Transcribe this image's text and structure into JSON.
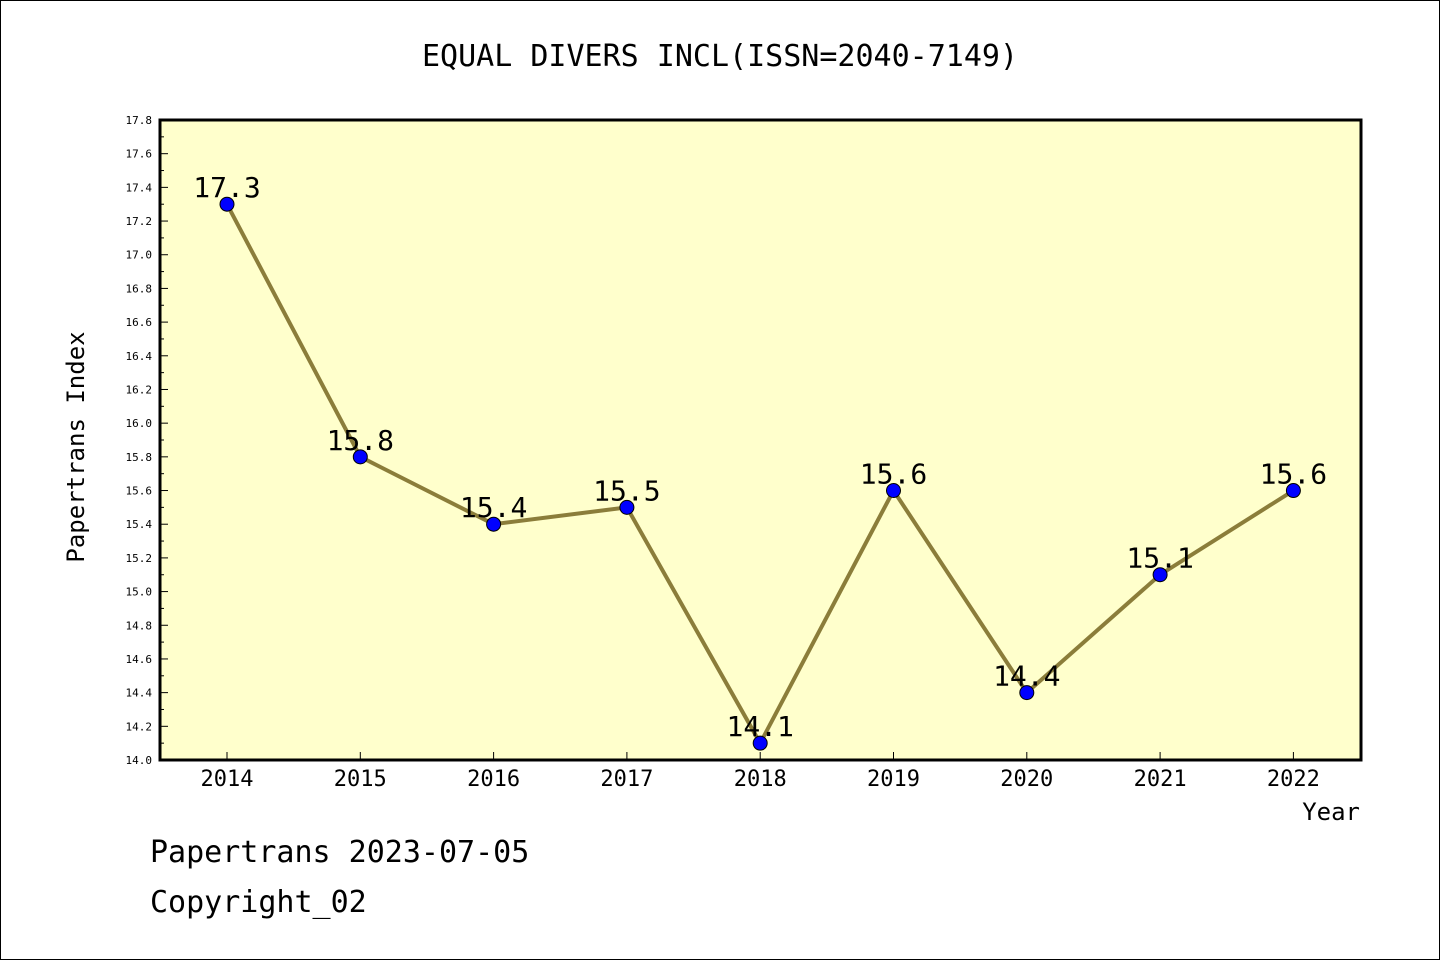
{
  "chart_data": {
    "type": "line",
    "title": "EQUAL DIVERS INCL(ISSN=2040-7149)",
    "xlabel": "Year",
    "ylabel": "Papertrans Index",
    "categories": [
      "2014",
      "2015",
      "2016",
      "2017",
      "2018",
      "2019",
      "2020",
      "2021",
      "2022"
    ],
    "series": [
      {
        "values": [
          17.3,
          15.8,
          15.4,
          15.5,
          14.1,
          15.6,
          14.4,
          15.1,
          15.6
        ]
      }
    ],
    "data_labels": [
      "17.3",
      "15.8",
      "15.4",
      "15.5",
      "14.1",
      "15.6",
      "14.4",
      "15.1",
      "15.6"
    ],
    "ylim": [
      14.0,
      17.8
    ],
    "y_ticks": [
      "14.0",
      "14.2",
      "14.4",
      "14.6",
      "14.8",
      "15.0",
      "15.2",
      "15.4",
      "15.6",
      "15.8",
      "16.0",
      "16.2",
      "16.4",
      "16.6",
      "16.8",
      "17.0",
      "17.2",
      "17.4",
      "17.6",
      "17.8"
    ],
    "grid": false,
    "colors": {
      "plot_background": "#ffffcc",
      "line": "#8b7d3a",
      "marker": "#0000ff"
    }
  },
  "footer": {
    "line1": "Papertrans 2023-07-05",
    "line2": "Copyright_02"
  }
}
